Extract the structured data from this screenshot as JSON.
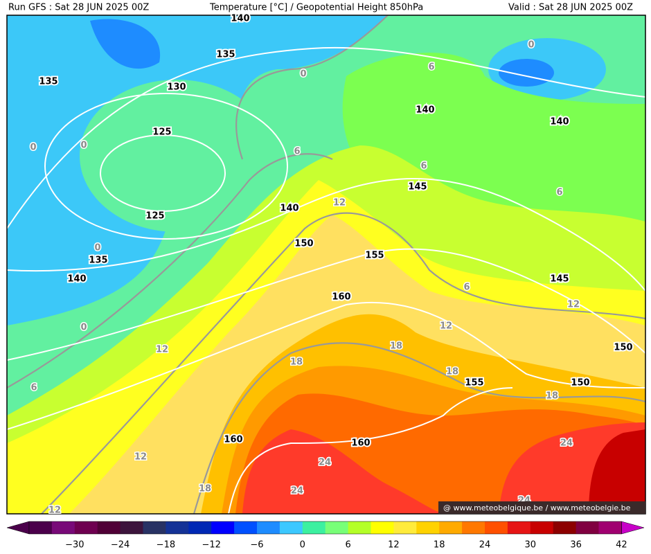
{
  "header": {
    "run": "Run GFS : Sat 28 JUN 2025 00Z",
    "title": "Temperature [°C] / Geopotential Height 850hPa",
    "valid": "Valid : Sat 28 JUN 2025 00Z"
  },
  "map": {
    "height_labels": [
      "140",
      "135",
      "135",
      "130",
      "140",
      "140",
      "125",
      "145",
      "140",
      "125",
      "150",
      "155",
      "135",
      "140",
      "145",
      "160",
      "150",
      "155",
      "150",
      "160",
      "160"
    ],
    "temperature_labels": [
      "0",
      "6",
      "0",
      "0",
      "0",
      "6",
      "6",
      "6",
      "12",
      "0",
      "6",
      "12",
      "0",
      "12",
      "18",
      "12",
      "18",
      "18",
      "6",
      "18",
      "24",
      "12",
      "24",
      "18",
      "24",
      "24",
      "12"
    ]
  },
  "colorbar": {
    "ticks": [
      "−30",
      "−24",
      "−18",
      "−12",
      "−6",
      "0",
      "6",
      "12",
      "18",
      "24",
      "30",
      "36",
      "42"
    ]
  },
  "watermark": "@ www.meteobelgique.be / www.meteobelgie.be"
}
